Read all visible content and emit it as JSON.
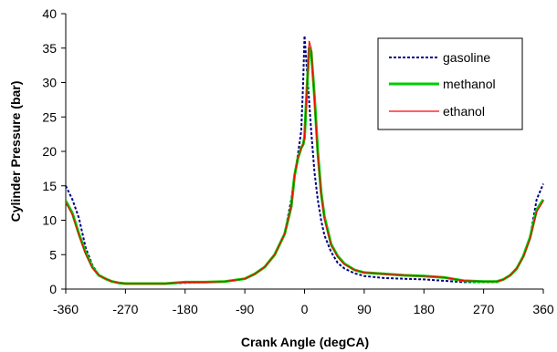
{
  "chart_data": {
    "type": "line",
    "xlabel": "Crank Angle (degCA)",
    "ylabel": "Cylinder Pressure (bar)",
    "xlim": [
      -360,
      360
    ],
    "ylim": [
      0,
      40
    ],
    "x_ticks": [
      -360,
      -270,
      -180,
      -90,
      0,
      90,
      180,
      270,
      360
    ],
    "y_ticks": [
      0,
      5,
      10,
      15,
      20,
      25,
      30,
      35,
      40
    ],
    "grid": false,
    "legend_position": "top-right",
    "series": [
      {
        "name": "gasoline",
        "color": "#000080",
        "style": "dashed",
        "x": [
          -360,
          -350,
          -340,
          -330,
          -320,
          -310,
          -300,
          -290,
          -280,
          -270,
          -240,
          -210,
          -180,
          -150,
          -120,
          -90,
          -75,
          -60,
          -45,
          -30,
          -20,
          -15,
          -10,
          -5,
          -2,
          0,
          2,
          5,
          10,
          15,
          20,
          25,
          30,
          40,
          50,
          60,
          75,
          90,
          120,
          150,
          180,
          210,
          240,
          270,
          290,
          300,
          310,
          320,
          330,
          340,
          350,
          360
        ],
        "values": [
          15,
          13,
          10.3,
          6,
          3.5,
          2,
          1.5,
          1.1,
          0.9,
          0.8,
          0.8,
          0.8,
          0.9,
          1,
          1.1,
          1.5,
          2.2,
          3.2,
          5,
          8,
          13,
          16.5,
          19.5,
          23,
          30,
          36.8,
          34,
          30,
          23,
          17,
          13,
          10,
          7.8,
          5.4,
          3.8,
          3,
          2.3,
          1.9,
          1.6,
          1.5,
          1.4,
          1.2,
          1,
          1,
          1,
          1.4,
          2,
          3,
          4.8,
          7.5,
          13,
          15.3
        ]
      },
      {
        "name": "methanol",
        "color": "#00cc00",
        "style": "solid",
        "x": [
          -360,
          -350,
          -340,
          -330,
          -320,
          -310,
          -300,
          -290,
          -280,
          -270,
          -240,
          -210,
          -180,
          -150,
          -120,
          -90,
          -75,
          -60,
          -45,
          -30,
          -20,
          -15,
          -10,
          -5,
          -2,
          0,
          3,
          7,
          10,
          15,
          20,
          25,
          30,
          40,
          50,
          60,
          75,
          90,
          120,
          150,
          180,
          210,
          240,
          270,
          290,
          300,
          310,
          320,
          330,
          340,
          350,
          360
        ],
        "values": [
          12.8,
          11,
          8,
          5.3,
          3.2,
          2,
          1.5,
          1.1,
          0.9,
          0.8,
          0.8,
          0.8,
          1,
          1,
          1.1,
          1.5,
          2.2,
          3.2,
          5,
          8,
          12,
          16.5,
          19,
          20.5,
          21,
          22,
          28,
          35,
          34.5,
          28,
          20,
          14,
          10.5,
          6.5,
          4.8,
          3.7,
          2.8,
          2.4,
          2.2,
          2,
          1.9,
          1.7,
          1.2,
          1.1,
          1.1,
          1.4,
          2,
          3,
          4.8,
          7.5,
          11.5,
          13
        ]
      },
      {
        "name": "ethanol",
        "color": "#ff0000",
        "style": "solid",
        "x": [
          -360,
          -350,
          -340,
          -330,
          -320,
          -310,
          -300,
          -290,
          -280,
          -270,
          -240,
          -210,
          -180,
          -150,
          -120,
          -90,
          -75,
          -60,
          -45,
          -30,
          -20,
          -15,
          -10,
          -5,
          -2,
          0,
          3,
          7,
          10,
          15,
          20,
          25,
          30,
          40,
          50,
          60,
          75,
          90,
          120,
          150,
          180,
          210,
          240,
          270,
          290,
          300,
          310,
          320,
          330,
          340,
          350,
          360
        ],
        "values": [
          12.6,
          10.8,
          7.8,
          5.1,
          3.1,
          2,
          1.5,
          1.1,
          0.9,
          0.8,
          0.8,
          0.8,
          1,
          1,
          1.1,
          1.5,
          2.2,
          3.2,
          5,
          8,
          12,
          16.5,
          19,
          20.5,
          21,
          22,
          28,
          36,
          35,
          27.5,
          19.5,
          13.8,
          10.2,
          6.4,
          4.7,
          3.6,
          2.8,
          2.4,
          2.2,
          2,
          1.9,
          1.7,
          1.2,
          1.1,
          1.1,
          1.4,
          2,
          3,
          4.7,
          7.3,
          11.2,
          12.8
        ]
      }
    ]
  }
}
